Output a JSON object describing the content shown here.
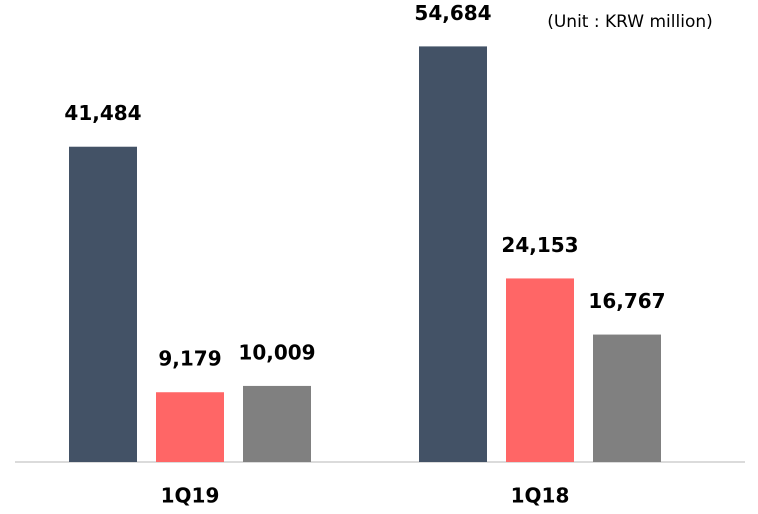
{
  "chart_data": {
    "type": "bar",
    "annotation": "(Unit : KRW million)",
    "categories": [
      "1Q19",
      "1Q18"
    ],
    "series": [
      {
        "color": "#435266",
        "values": [
          41484,
          54684
        ],
        "value_labels": [
          "41,484",
          "54,684"
        ]
      },
      {
        "color": "#ff6666",
        "values": [
          9179,
          24153
        ],
        "value_labels": [
          "9,179",
          "24,153"
        ]
      },
      {
        "color": "#808080",
        "values": [
          10009,
          16767
        ],
        "value_labels": [
          "10,009",
          "16,767"
        ]
      }
    ],
    "ylim": [
      0,
      60000
    ]
  }
}
